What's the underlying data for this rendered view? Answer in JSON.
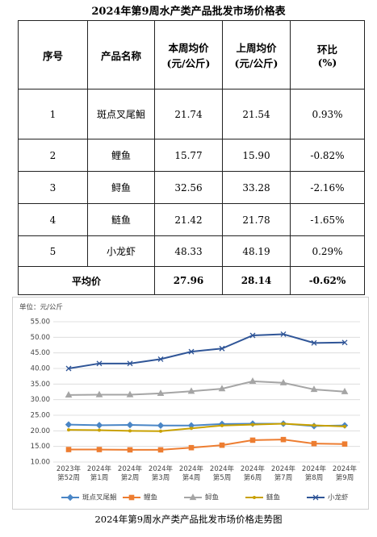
{
  "table": {
    "title": "2024年第9周水产类产品批发市场价格表",
    "header": [
      "序号",
      "产品名称",
      "本周均价\n(元/公斤)",
      "上周均价\n(元/公斤)",
      "环比\n(%)"
    ],
    "rows": [
      [
        "1",
        "斑点叉尾鮰",
        "21.74",
        "21.54",
        "0.93%"
      ],
      [
        "2",
        "鲤鱼",
        "15.77",
        "15.90",
        "-0.82%"
      ],
      [
        "3",
        "鲟鱼",
        "32.56",
        "33.28",
        "-2.16%"
      ],
      [
        "4",
        "鲢鱼",
        "21.42",
        "21.78",
        "-1.65%"
      ],
      [
        "5",
        "小龙虾",
        "48.33",
        "48.19",
        "0.29%"
      ]
    ],
    "average": [
      "平均价",
      "27.96",
      "28.14",
      "-0.62%"
    ]
  },
  "chart_data": {
    "type": "line",
    "y_label": "单位：元/公斤",
    "categories": [
      "2023年\n第52周",
      "2024年\n第1周",
      "2024年\n第2周",
      "2024年\n第3周",
      "2024年\n第4周",
      "2024年\n第5周",
      "2024年\n第6周",
      "2024年\n第7周",
      "2024年\n第8周",
      "2024年\n第9周"
    ],
    "series": [
      {
        "name": "斑点叉尾鮰",
        "color": "#4a86c6",
        "marker": "diamond",
        "values": [
          22.0,
          21.8,
          21.9,
          21.7,
          21.7,
          22.2,
          22.3,
          22.3,
          21.54,
          21.74
        ]
      },
      {
        "name": "鲤鱼",
        "color": "#ed7d31",
        "marker": "square",
        "values": [
          14.0,
          14.0,
          13.9,
          13.9,
          14.6,
          15.4,
          17.0,
          17.2,
          15.9,
          15.77
        ]
      },
      {
        "name": "鲟鱼",
        "color": "#a5a5a5",
        "marker": "triangle",
        "values": [
          31.5,
          31.6,
          31.6,
          32.0,
          32.7,
          33.5,
          35.9,
          35.4,
          33.28,
          32.56
        ]
      },
      {
        "name": "鲢鱼",
        "color": "#c9a100",
        "marker": "circle",
        "values": [
          20.3,
          20.2,
          20.0,
          19.9,
          20.8,
          21.7,
          22.0,
          22.3,
          21.78,
          21.42
        ]
      },
      {
        "name": "小龙虾",
        "color": "#2f5597",
        "marker": "cross",
        "values": [
          40.0,
          41.6,
          41.6,
          43.0,
          45.4,
          46.4,
          50.6,
          51.0,
          48.19,
          48.33
        ]
      }
    ],
    "ylim": [
      10,
      55
    ],
    "yticks": [
      {
        "value": 10,
        "label": "10.00"
      },
      {
        "value": 15,
        "label": "15.00"
      },
      {
        "value": 20,
        "label": "20.00"
      },
      {
        "value": 25,
        "label": "25.00"
      },
      {
        "value": 30,
        "label": "30.00"
      },
      {
        "value": 35,
        "label": "35.00"
      },
      {
        "value": 40,
        "label": "40.00"
      },
      {
        "value": 45,
        "label": "45.00"
      },
      {
        "value": 50,
        "label": "50.00"
      },
      {
        "value": 55,
        "label": "55.00"
      }
    ],
    "grid": true,
    "legend": "bottom"
  },
  "caption": "2024年第9周水产类产品批发市场价格走势图"
}
